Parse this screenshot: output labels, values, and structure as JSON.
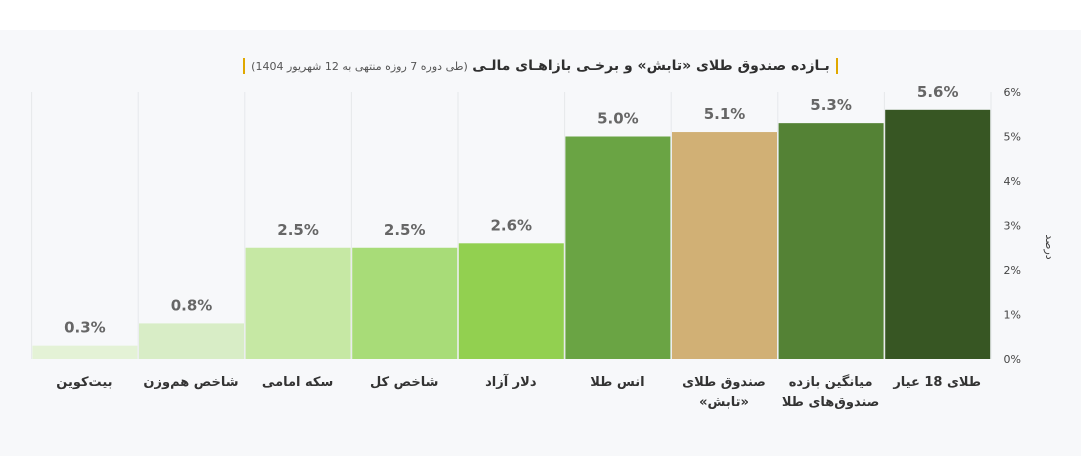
{
  "title": {
    "main": "بـازده صندوق طلای «تابش» و برخـی بازاهـای مالـی",
    "sub": "(طی دوره 7 روزه منتهی به 12 شهریور 1404)"
  },
  "chart_data": {
    "type": "bar",
    "categories": [
      "طلای 18 عیار",
      "میانگین بازده صندوق‌های طلا",
      "صندوق طلای «تابش»",
      "انس طلا",
      "دلار آزاد",
      "شاخص کل",
      "سکه امامی",
      "شاخص هم‌وزن",
      "بیت‌کوین"
    ],
    "values": [
      5.6,
      5.3,
      5.1,
      5.0,
      2.6,
      2.5,
      2.5,
      0.8,
      0.3
    ],
    "value_labels": [
      "5.6%",
      "5.3%",
      "5.1%",
      "5.0%",
      "2.6%",
      "2.5%",
      "2.5%",
      "0.8%",
      "0.3%"
    ],
    "colors": [
      "#375623",
      "#548235",
      "#d1b075",
      "#6aa444",
      "#92d050",
      "#a8dc78",
      "#c6e8a4",
      "#d8edc6",
      "#e4f2d6"
    ],
    "ylabel": "درصد",
    "ylim": [
      0,
      6
    ],
    "yticks": [
      "0%",
      "1%",
      "2%",
      "3%",
      "4%",
      "5%",
      "6%"
    ],
    "y_axis_position": "right",
    "grid": false
  }
}
